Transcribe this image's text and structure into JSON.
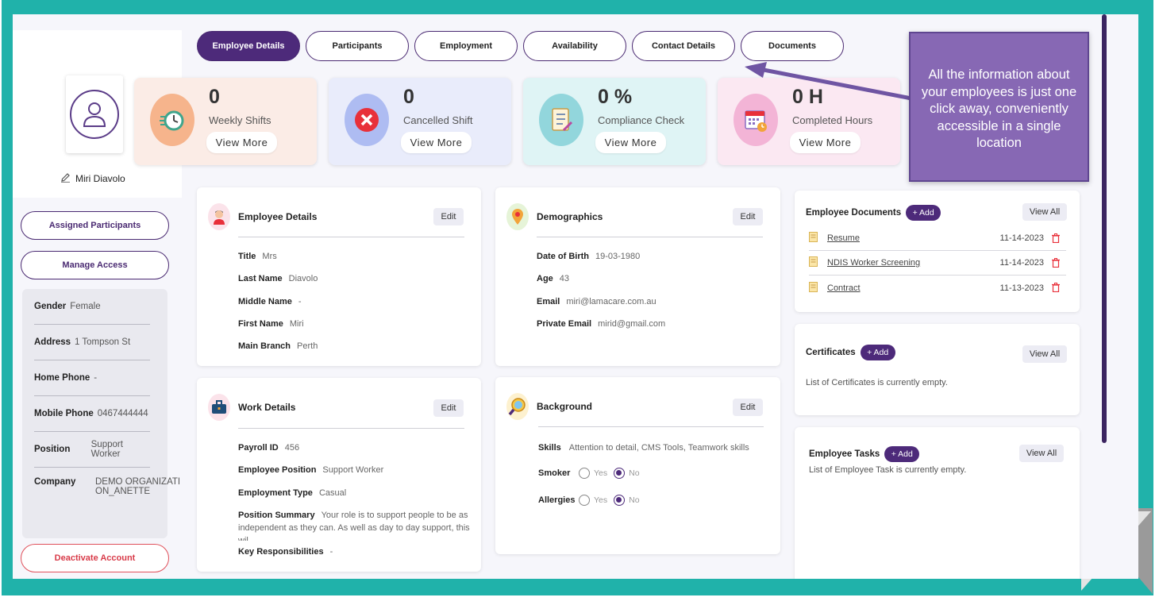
{
  "tabs": [
    "Employee Details",
    "Participants",
    "Employment",
    "Availability",
    "Contact Details",
    "Documents"
  ],
  "profile": {
    "name": "Miri Diavolo"
  },
  "stats": [
    {
      "value": "0",
      "label": "Weekly Shifts",
      "button": "View More",
      "icon": "stopwatch-icon",
      "bg": "#fbece6",
      "icon_bg": "#f6b48c"
    },
    {
      "value": "0",
      "label": "Cancelled Shift",
      "button": "View More",
      "icon": "cancel-icon",
      "bg": "#e9ecfb",
      "icon_bg": "#aebcf2"
    },
    {
      "value": "0 %",
      "label": "Compliance Check",
      "button": "View More",
      "icon": "checklist-icon",
      "bg": "#dff4f5",
      "icon_bg": "#92d6dc"
    },
    {
      "value": "0 H",
      "label": "Completed Hours",
      "button": "View More",
      "icon": "calendar-clock-icon",
      "bg": "#fbe8f2",
      "icon_bg": "#f3b4d6"
    }
  ],
  "callout": {
    "text": "All the information about your employees is just one click away, conveniently accessible in a single location"
  },
  "sidebar": {
    "assigned": "Assigned Participants",
    "manage": "Manage Access",
    "deactivate": "Deactivate Account",
    "info": [
      {
        "label": "Gender",
        "value": "Female"
      },
      {
        "label": "Address",
        "value": "1 Tompson St"
      },
      {
        "label": "Home Phone",
        "value": "-"
      },
      {
        "label": "Mobile Phone",
        "value": "0467444444"
      },
      {
        "label": "Position",
        "value": "Support Worker"
      },
      {
        "label": "Company",
        "value": "DEMO ORGANIZATION_ANETTE"
      }
    ]
  },
  "employee_details": {
    "title": "Employee Details",
    "edit": "Edit",
    "fields": [
      {
        "label": "Title",
        "value": "Mrs"
      },
      {
        "label": "Last Name",
        "value": "Diavolo"
      },
      {
        "label": "Middle Name",
        "value": "-"
      },
      {
        "label": "First Name",
        "value": "Miri"
      },
      {
        "label": "Main Branch",
        "value": "Perth"
      }
    ]
  },
  "demographics": {
    "title": "Demographics",
    "edit": "Edit",
    "fields": [
      {
        "label": "Date of Birth",
        "value": "19-03-1980"
      },
      {
        "label": "Age",
        "value": "43"
      },
      {
        "label": "Email",
        "value": "miri@lamacare.com.au"
      },
      {
        "label": "Private Email",
        "value": "mirid@gmail.com"
      }
    ]
  },
  "work_details": {
    "title": "Work Details",
    "edit": "Edit",
    "payroll_label": "Payroll ID",
    "payroll_value": "456",
    "position_label": "Employee Position",
    "position_value": "Support Worker",
    "type_label": "Employment Type",
    "type_value": "Casual",
    "summary_label": "Position Summary",
    "summary_value": "Your role is to support people to be as independent as they can. As well as day to day support, this wil...",
    "resp_label": "Key Responsibilities",
    "resp_value": "-"
  },
  "background": {
    "title": "Background",
    "edit": "Edit",
    "skills_label": "Skills",
    "skills_value": "Attention to detail, CMS Tools, Teamwork skills",
    "smoker_label": "Smoker",
    "allergies_label": "Allergies",
    "yes": "Yes",
    "no": "No",
    "smoker_selected": "No",
    "allergies_selected": "No"
  },
  "documents": {
    "title": "Employee Documents",
    "add": "+ Add",
    "view_all": "View All",
    "items": [
      {
        "name": "Resume",
        "date": "11-14-2023"
      },
      {
        "name": "NDIS Worker Screening",
        "date": "11-14-2023"
      },
      {
        "name": "Contract",
        "date": "11-13-2023"
      }
    ]
  },
  "certificates": {
    "title": "Certificates",
    "add": "+ Add",
    "view_all": "View All",
    "empty": "List of Certificates is currently empty."
  },
  "tasks": {
    "title": "Employee Tasks",
    "add": "+ Add",
    "view_all": "View All",
    "empty": "List of Employee Task is currently empty."
  },
  "colors": {
    "frame": "#20b2aa",
    "accent": "#4d2a7a",
    "callout": "#8768b4",
    "danger": "#d83a48"
  }
}
